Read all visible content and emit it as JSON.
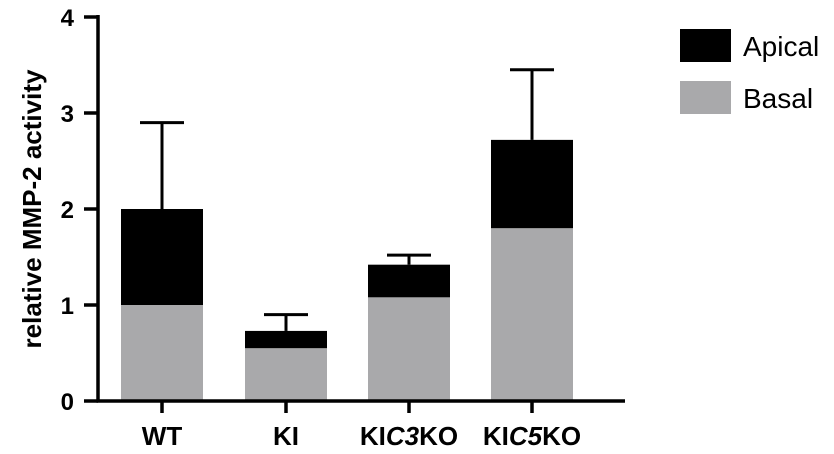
{
  "chart_data": {
    "type": "bar",
    "stacked": true,
    "categories": [
      "WT",
      "KI",
      "KIC3KO",
      "KIC5KO"
    ],
    "category_label_parts": [
      [
        {
          "text": "WT",
          "italic": false
        }
      ],
      [
        {
          "text": "KI",
          "italic": false
        }
      ],
      [
        {
          "text": "KI",
          "italic": false
        },
        {
          "text": "C3",
          "italic": true
        },
        {
          "text": "KO",
          "italic": false
        }
      ],
      [
        {
          "text": "KI",
          "italic": false
        },
        {
          "text": "C5",
          "italic": true
        },
        {
          "text": "KO",
          "italic": false
        }
      ]
    ],
    "series": [
      {
        "name": "Basal",
        "color": "#a9a9ab",
        "values": [
          1.0,
          0.55,
          1.08,
          1.8
        ]
      },
      {
        "name": "Apical",
        "color": "#000000",
        "values": [
          1.0,
          0.18,
          0.34,
          0.92
        ]
      }
    ],
    "error_bar_tops": [
      2.9,
      0.9,
      1.52,
      3.45
    ],
    "ylabel": "relative MMP-2 activity",
    "xlabel": "",
    "ylim": [
      0,
      4
    ],
    "yticks": [
      0,
      1,
      2,
      3,
      4
    ],
    "legend_position": "top-right",
    "grid": false
  }
}
